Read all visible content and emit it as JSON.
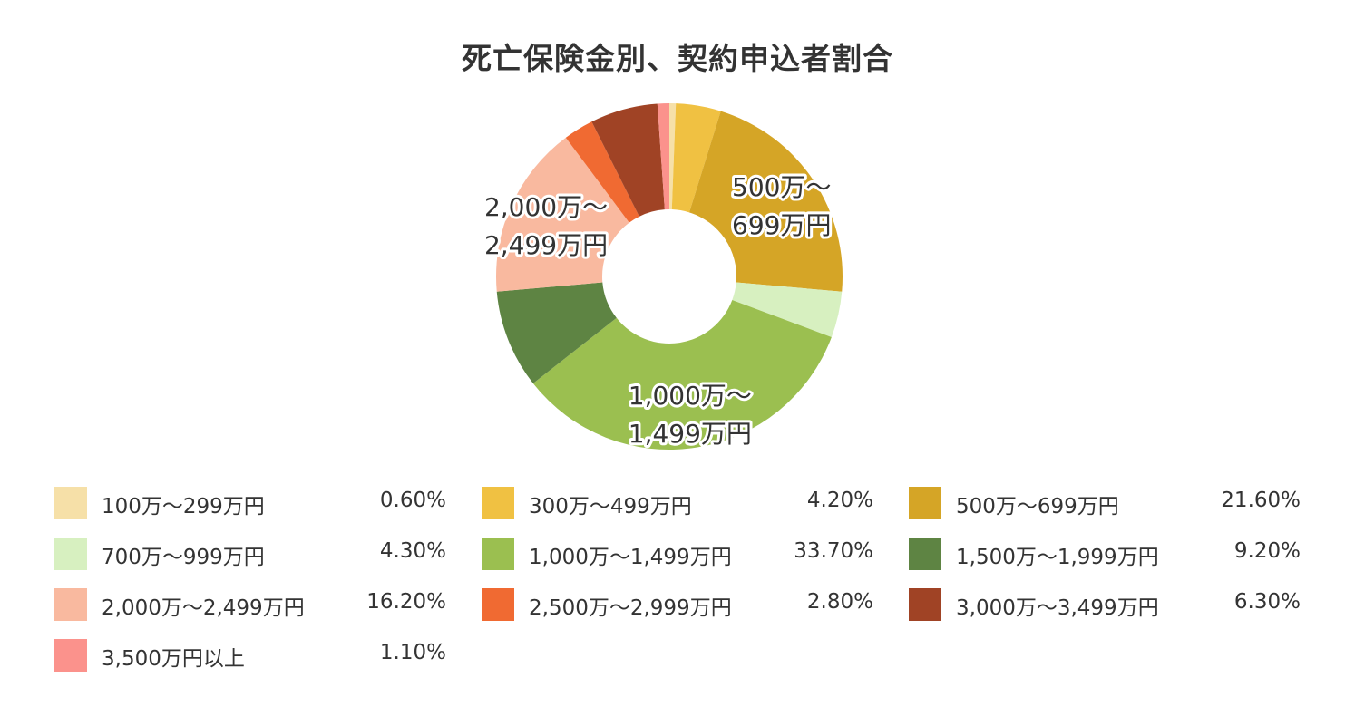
{
  "chart_data": {
    "type": "pie",
    "title": "死亡保険金別、契約申込者割合",
    "hole": true,
    "categories": [
      "100万～299万円",
      "300万～499万円",
      "500万～699万円",
      "700万～999万円",
      "1,000万～1,499万円",
      "1,500万～1,999万円",
      "2,000万～2,499万円",
      "2,500万～2,999万円",
      "3,000万～3,499万円",
      "3,500万円以上"
    ],
    "values": [
      0.6,
      4.2,
      21.6,
      4.3,
      33.7,
      9.2,
      16.2,
      2.8,
      6.3,
      1.1
    ],
    "value_labels": [
      "0.60%",
      "4.20%",
      "21.60%",
      "4.30%",
      "33.70%",
      "9.20%",
      "16.20%",
      "2.80%",
      "6.30%",
      "1.10%"
    ],
    "colors": [
      "#f6e0a8",
      "#f0c142",
      "#d5a526",
      "#d7f0c0",
      "#9bbf50",
      "#5e8443",
      "#f9b99f",
      "#f06a32",
      "#a04325",
      "#fb928c"
    ],
    "slice_labels": [
      {
        "index": 2,
        "lines": [
          "500万～",
          "699万円"
        ]
      },
      {
        "index": 4,
        "lines": [
          "1,000万～",
          "1,499万円"
        ]
      },
      {
        "index": 6,
        "lines": [
          "2,000万～",
          "2,499万円"
        ]
      }
    ],
    "legend": {
      "position": "bottom",
      "columns": 3
    }
  }
}
